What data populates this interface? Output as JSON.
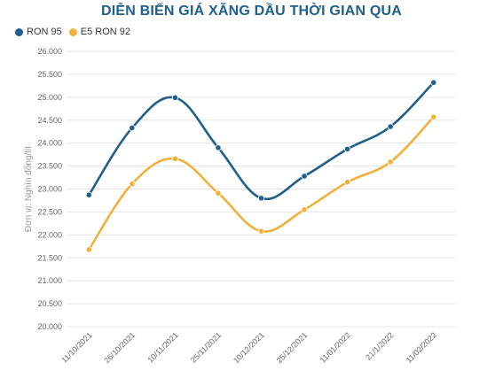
{
  "chart_data": {
    "type": "line",
    "title": "DIỄN BIẾN GIÁ XĂNG DẦU THỜI GIAN QUA",
    "ylabel": "Đơn vị: Nghìn đồng/lít",
    "xlabel": "",
    "categories": [
      "11/10/2021",
      "26/10/2021",
      "10/11/2021",
      "25/11/2021",
      "10/12/2021",
      "25/12/2021",
      "11/01/2022",
      "21/1/2022",
      "11/02/2022"
    ],
    "series": [
      {
        "name": "RON 95",
        "color": "#1f5f8b",
        "values": [
          22870,
          24330,
          24990,
          23900,
          22800,
          23280,
          23870,
          24360,
          25320
        ]
      },
      {
        "name": "E5 RON 92",
        "color": "#f0b03a",
        "values": [
          21680,
          23110,
          23660,
          22910,
          22080,
          22550,
          23150,
          23590,
          24570
        ]
      }
    ],
    "ylim": [
      20000,
      26000
    ],
    "yticks": [
      "20.000",
      "20.500",
      "21.000",
      "21.500",
      "22.000",
      "22.500",
      "23.000",
      "23.500",
      "24.000",
      "24.500",
      "25.000",
      "25.500",
      "26.000"
    ],
    "grid": true,
    "legend_position": "top-left"
  }
}
